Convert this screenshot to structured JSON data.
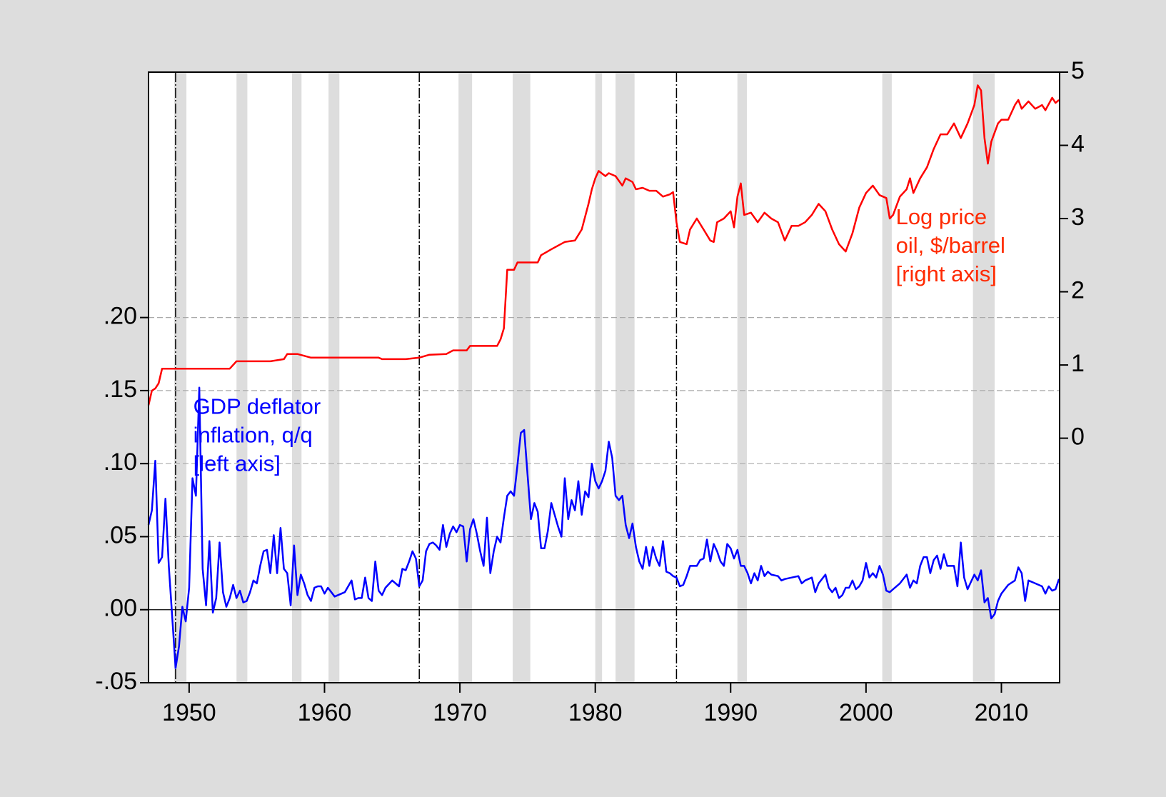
{
  "chart_data": {
    "type": "line",
    "xlim": [
      1947,
      2014.3
    ],
    "xticks": [
      1950,
      1960,
      1970,
      1980,
      1990,
      2000,
      2010
    ],
    "ylim": [
      -0.05,
      0.368
    ],
    "yticks": [
      {
        "value": -0.05,
        "label": "-.05"
      },
      {
        "value": 0,
        "label": ".00"
      },
      {
        "value": 0.05,
        "label": ".05"
      },
      {
        "value": 0.1,
        "label": ".10"
      },
      {
        "value": 0.15,
        "label": ".15"
      },
      {
        "value": 0.2,
        "label": ".20"
      }
    ],
    "y2lim": [
      -3.34,
      5
    ],
    "y2ticks": [
      0,
      1,
      2,
      3,
      4,
      5
    ],
    "grid": true,
    "recessions": [
      [
        1948.9,
        1949.8
      ],
      [
        1953.5,
        1954.3
      ],
      [
        1957.6,
        1958.3
      ],
      [
        1960.3,
        1961.1
      ],
      [
        1969.9,
        1970.9
      ],
      [
        1973.9,
        1975.2
      ],
      [
        1980.0,
        1980.5
      ],
      [
        1981.5,
        1982.9
      ],
      [
        1990.5,
        1991.2
      ],
      [
        2001.2,
        2001.9
      ],
      [
        2007.9,
        2009.5
      ]
    ],
    "vlines": [
      1949,
      1967,
      1986
    ],
    "annotations": [
      {
        "lines": [
          "GDP deflator",
          "inflation, q/q",
          "[left axis]"
        ],
        "color": "#0000ff",
        "x": 1950.3,
        "y": 0.138
      },
      {
        "lines": [
          "Log price",
          "oil, $/barrel",
          "[right axis]"
        ],
        "color": "#ff2a00",
        "x": 2002.2,
        "y": 3,
        "axis": "y2"
      }
    ],
    "series": [
      {
        "color": "#0000ff",
        "x": [
          1947.0,
          1947.25,
          1947.5,
          1947.75,
          1948.0,
          1948.25,
          1948.5,
          1948.75,
          1949.0,
          1949.25,
          1949.5,
          1949.75,
          1950.0,
          1950.25,
          1950.5,
          1950.75,
          1951.0,
          1951.25,
          1951.5,
          1951.75,
          1952.0,
          1952.25,
          1952.5,
          1952.75,
          1953.0,
          1953.25,
          1953.5,
          1953.75,
          1954.0,
          1954.25,
          1954.5,
          1954.75,
          1955.0,
          1955.25,
          1955.5,
          1955.75,
          1956.0,
          1956.25,
          1956.5,
          1956.75,
          1957.0,
          1957.25,
          1957.5,
          1957.75,
          1958.0,
          1958.25,
          1958.5,
          1958.75,
          1959.0,
          1959.25,
          1959.5,
          1959.75,
          1960.0,
          1960.25,
          1960.5,
          1960.75,
          1961.0,
          1961.5,
          1962.0,
          1962.25,
          1962.5,
          1962.75,
          1963.0,
          1963.25,
          1963.5,
          1963.75,
          1964.0,
          1964.25,
          1964.5,
          1965.0,
          1965.5,
          1965.75,
          1966.0,
          1966.25,
          1966.5,
          1966.75,
          1967.0,
          1967.25,
          1967.5,
          1967.75,
          1968.0,
          1968.25,
          1968.5,
          1968.75,
          1969.0,
          1969.25,
          1969.5,
          1969.75,
          1970.0,
          1970.25,
          1970.5,
          1970.75,
          1971.0,
          1971.25,
          1971.5,
          1971.75,
          1972.0,
          1972.25,
          1972.5,
          1972.75,
          1973.0,
          1973.25,
          1973.5,
          1973.75,
          1974.0,
          1974.25,
          1974.5,
          1974.75,
          1975.0,
          1975.25,
          1975.5,
          1975.75,
          1976.0,
          1976.25,
          1976.5,
          1976.75,
          1977.0,
          1977.25,
          1977.5,
          1977.75,
          1978.0,
          1978.25,
          1978.5,
          1978.75,
          1979.0,
          1979.25,
          1979.5,
          1979.75,
          1980.0,
          1980.25,
          1980.5,
          1980.75,
          1981.0,
          1981.25,
          1981.5,
          1981.75,
          1982.0,
          1982.25,
          1982.5,
          1982.75,
          1983.0,
          1983.25,
          1983.5,
          1983.75,
          1984.0,
          1984.25,
          1984.5,
          1984.75,
          1985.0,
          1985.25,
          1985.5,
          1985.75,
          1986.0,
          1986.25,
          1986.5,
          1986.75,
          1987.0,
          1987.5,
          1987.75,
          1988.0,
          1988.25,
          1988.5,
          1988.75,
          1989.0,
          1989.25,
          1989.5,
          1989.75,
          1990.0,
          1990.25,
          1990.5,
          1990.75,
          1991.0,
          1991.25,
          1991.5,
          1991.75,
          1992.0,
          1992.25,
          1992.5,
          1992.75,
          1993.0,
          1993.5,
          1993.75,
          1994.0,
          1995.0,
          1995.25,
          1995.5,
          1996.0,
          1996.25,
          1996.5,
          1997.0,
          1997.25,
          1997.5,
          1997.75,
          1998.0,
          1998.25,
          1998.5,
          1998.75,
          1999.0,
          1999.25,
          1999.5,
          1999.75,
          2000.0,
          2000.25,
          2000.5,
          2000.75,
          2001.0,
          2001.25,
          2001.5,
          2001.75,
          2002.0,
          2002.5,
          2003.0,
          2003.25,
          2003.5,
          2003.75,
          2004.0,
          2004.25,
          2004.5,
          2004.75,
          2005.0,
          2005.25,
          2005.5,
          2005.75,
          2006.0,
          2006.5,
          2006.75,
          2007.0,
          2007.25,
          2007.5,
          2007.75,
          2008.0,
          2008.25,
          2008.5,
          2008.75,
          2009.0,
          2009.25,
          2009.5,
          2009.75,
          2010.0,
          2010.5,
          2011.0,
          2011.25,
          2011.5,
          2011.75,
          2012.0,
          2012.5,
          2013.0,
          2013.25,
          2013.5,
          2013.75,
          2014.0,
          2014.25
        ],
        "values": [
          0.058,
          0.068,
          0.102,
          0.032,
          0.036,
          0.076,
          0.03,
          -0.005,
          -0.04,
          -0.025,
          0.002,
          -0.008,
          0.015,
          0.09,
          0.078,
          0.152,
          0.028,
          0.003,
          0.047,
          -0.002,
          0.008,
          0.046,
          0.012,
          0.002,
          0.008,
          0.017,
          0.008,
          0.013,
          0.005,
          0.006,
          0.012,
          0.02,
          0.018,
          0.03,
          0.04,
          0.041,
          0.025,
          0.051,
          0.025,
          0.056,
          0.028,
          0.025,
          0.003,
          0.044,
          0.01,
          0.024,
          0.018,
          0.01,
          0.006,
          0.015,
          0.016,
          0.016,
          0.011,
          0.015,
          0.012,
          0.009,
          0.01,
          0.012,
          0.02,
          0.007,
          0.008,
          0.008,
          0.022,
          0.008,
          0.006,
          0.033,
          0.013,
          0.01,
          0.015,
          0.02,
          0.016,
          0.028,
          0.027,
          0.033,
          0.04,
          0.035,
          0.016,
          0.02,
          0.04,
          0.045,
          0.046,
          0.044,
          0.041,
          0.058,
          0.043,
          0.052,
          0.057,
          0.053,
          0.058,
          0.057,
          0.033,
          0.055,
          0.062,
          0.052,
          0.04,
          0.03,
          0.063,
          0.025,
          0.04,
          0.05,
          0.046,
          0.063,
          0.078,
          0.081,
          0.078,
          0.099,
          0.121,
          0.123,
          0.092,
          0.062,
          0.073,
          0.067,
          0.042,
          0.042,
          0.054,
          0.073,
          0.065,
          0.057,
          0.05,
          0.09,
          0.062,
          0.075,
          0.068,
          0.088,
          0.065,
          0.081,
          0.077,
          0.1,
          0.088,
          0.083,
          0.088,
          0.095,
          0.115,
          0.104,
          0.078,
          0.075,
          0.078,
          0.058,
          0.049,
          0.059,
          0.043,
          0.033,
          0.028,
          0.043,
          0.03,
          0.043,
          0.035,
          0.03,
          0.047,
          0.026,
          0.025,
          0.023,
          0.022,
          0.016,
          0.017,
          0.023,
          0.03,
          0.03,
          0.034,
          0.035,
          0.048,
          0.033,
          0.045,
          0.04,
          0.033,
          0.03,
          0.045,
          0.042,
          0.035,
          0.041,
          0.03,
          0.03,
          0.025,
          0.018,
          0.025,
          0.02,
          0.03,
          0.023,
          0.026,
          0.024,
          0.023,
          0.02,
          0.021,
          0.023,
          0.018,
          0.02,
          0.022,
          0.012,
          0.018,
          0.024,
          0.015,
          0.012,
          0.015,
          0.008,
          0.01,
          0.015,
          0.015,
          0.02,
          0.014,
          0.016,
          0.02,
          0.032,
          0.022,
          0.025,
          0.022,
          0.03,
          0.024,
          0.013,
          0.012,
          0.014,
          0.018,
          0.024,
          0.015,
          0.02,
          0.018,
          0.03,
          0.036,
          0.036,
          0.025,
          0.034,
          0.037,
          0.028,
          0.038,
          0.03,
          0.03,
          0.016,
          0.046,
          0.022,
          0.014,
          0.019,
          0.024,
          0.02,
          0.027,
          0.005,
          0.008,
          -0.006,
          -0.003,
          0.006,
          0.011,
          0.017,
          0.02,
          0.029,
          0.025,
          0.006,
          0.02,
          0.018,
          0.016,
          0.011,
          0.016,
          0.013,
          0.014,
          0.021
        ]
      },
      {
        "color": "#ff0000",
        "axis": "y2",
        "x": [
          1947.0,
          1947.25,
          1947.5,
          1947.75,
          1948.0,
          1952.0,
          1953.0,
          1953.5,
          1956.0,
          1957.0,
          1957.25,
          1958.0,
          1959.0,
          1964.0,
          1964.25,
          1966.0,
          1967.0,
          1967.75,
          1969.0,
          1969.5,
          1970.5,
          1970.75,
          1972.75,
          1973.0,
          1973.25,
          1973.5,
          1974.0,
          1974.25,
          1975.75,
          1976.0,
          1976.75,
          1977.75,
          1978.5,
          1979.0,
          1979.5,
          1979.75,
          1980.0,
          1980.25,
          1980.75,
          1981.0,
          1981.5,
          1982.0,
          1982.25,
          1982.75,
          1983.0,
          1983.5,
          1984.0,
          1984.5,
          1985.0,
          1985.5,
          1985.75,
          1986.0,
          1986.25,
          1986.75,
          1987.0,
          1987.5,
          1988.0,
          1988.5,
          1988.75,
          1989.0,
          1989.5,
          1990.0,
          1990.25,
          1990.5,
          1990.75,
          1991.0,
          1991.5,
          1992.0,
          1992.5,
          1993.0,
          1993.5,
          1994.0,
          1994.5,
          1995.0,
          1995.5,
          1996.0,
          1996.5,
          1997.0,
          1997.5,
          1998.0,
          1998.5,
          1999.0,
          1999.5,
          2000.0,
          2000.5,
          2001.0,
          2001.5,
          2001.75,
          2002.0,
          2002.5,
          2003.0,
          2003.25,
          2003.5,
          2004.0,
          2004.5,
          2005.0,
          2005.5,
          2006.0,
          2006.5,
          2007.0,
          2007.5,
          2008.0,
          2008.25,
          2008.5,
          2008.75,
          2009.0,
          2009.25,
          2009.75,
          2010.0,
          2010.5,
          2011.0,
          2011.25,
          2011.5,
          2012.0,
          2012.5,
          2013.0,
          2013.25,
          2013.75,
          2014.0,
          2014.25
        ],
        "values": [
          0.45,
          0.65,
          0.68,
          0.75,
          0.95,
          0.95,
          0.95,
          1.05,
          1.05,
          1.08,
          1.15,
          1.15,
          1.1,
          1.1,
          1.08,
          1.08,
          1.1,
          1.14,
          1.15,
          1.2,
          1.2,
          1.26,
          1.26,
          1.35,
          1.5,
          2.3,
          2.3,
          2.4,
          2.4,
          2.5,
          2.58,
          2.68,
          2.7,
          2.85,
          3.2,
          3.4,
          3.55,
          3.65,
          3.58,
          3.62,
          3.58,
          3.45,
          3.55,
          3.5,
          3.4,
          3.42,
          3.38,
          3.38,
          3.3,
          3.33,
          3.36,
          2.95,
          2.68,
          2.65,
          2.85,
          3.0,
          2.85,
          2.7,
          2.68,
          2.95,
          3.0,
          3.1,
          2.88,
          3.3,
          3.48,
          3.05,
          3.08,
          2.95,
          3.08,
          3.0,
          2.95,
          2.7,
          2.9,
          2.9,
          2.95,
          3.05,
          3.2,
          3.1,
          2.85,
          2.65,
          2.55,
          2.8,
          3.15,
          3.35,
          3.45,
          3.32,
          3.28,
          3.0,
          3.05,
          3.3,
          3.4,
          3.55,
          3.35,
          3.55,
          3.7,
          3.95,
          4.15,
          4.15,
          4.3,
          4.1,
          4.3,
          4.55,
          4.82,
          4.75,
          4.1,
          3.75,
          4.05,
          4.3,
          4.35,
          4.35,
          4.55,
          4.62,
          4.5,
          4.6,
          4.5,
          4.55,
          4.48,
          4.65,
          4.58,
          4.62
        ]
      }
    ]
  }
}
